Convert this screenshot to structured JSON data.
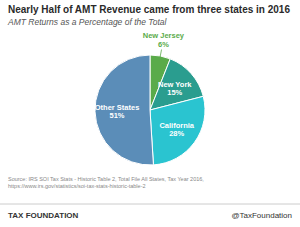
{
  "chart_data": {
    "type": "pie",
    "title": "Nearly Half of AMT Revenue came from three states in 2016",
    "subtitle": "AMT Returns as a Percentage of the Total",
    "categories": [
      "New Jersey",
      "New York",
      "California",
      "Other States"
    ],
    "values": [
      6,
      15,
      28,
      51
    ],
    "value_labels": [
      "6%",
      "15%",
      "28%",
      "51%"
    ],
    "data_labels": true,
    "colors": [
      "#5aab4a",
      "#2a9d8f",
      "#2ac4d0",
      "#5b8db8"
    ],
    "annotations": [
      "Source: IRS SOI Tax Stats - Historic Table 2, Total File All States, Tax Year 2016, https://www.irs.gov/statistics/soi-tax-stats-historic-table-2",
      "TAX FOUNDATION",
      "@TaxFoundation"
    ]
  }
}
